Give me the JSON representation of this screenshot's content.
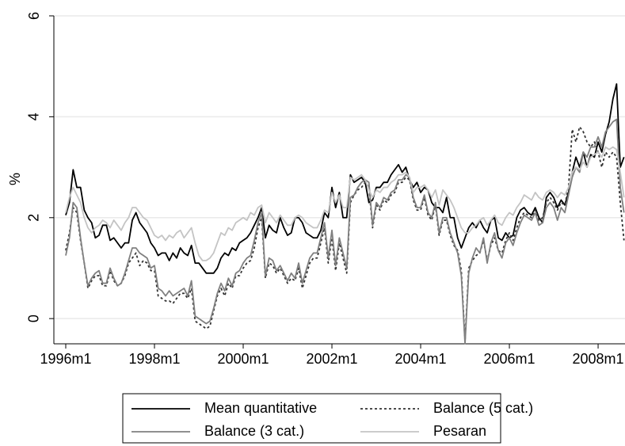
{
  "chart_data": {
    "type": "line",
    "y_label": "%",
    "x": [
      "1996m1",
      "1996m2",
      "1996m3",
      "1996m4",
      "1996m5",
      "1996m6",
      "1996m7",
      "1996m8",
      "1996m9",
      "1996m10",
      "1996m11",
      "1996m12",
      "1997m1",
      "1997m2",
      "1997m3",
      "1997m4",
      "1997m5",
      "1997m6",
      "1997m7",
      "1997m8",
      "1997m9",
      "1997m10",
      "1997m11",
      "1997m12",
      "1998m1",
      "1998m2",
      "1998m3",
      "1998m4",
      "1998m5",
      "1998m6",
      "1998m7",
      "1998m8",
      "1998m9",
      "1998m10",
      "1998m11",
      "1998m12",
      "1999m1",
      "1999m2",
      "1999m3",
      "1999m4",
      "1999m5",
      "1999m6",
      "1999m7",
      "1999m8",
      "1999m9",
      "1999m10",
      "1999m11",
      "1999m12",
      "2000m1",
      "2000m2",
      "2000m3",
      "2000m4",
      "2000m5",
      "2000m6",
      "2000m7",
      "2000m8",
      "2000m9",
      "2000m10",
      "2000m11",
      "2000m12",
      "2001m1",
      "2001m2",
      "2001m3",
      "2001m4",
      "2001m5",
      "2001m6",
      "2001m7",
      "2001m8",
      "2001m9",
      "2001m10",
      "2001m11",
      "2001m12",
      "2002m1",
      "2002m2",
      "2002m3",
      "2002m4",
      "2002m5",
      "2002m6",
      "2002m7",
      "2002m8",
      "2002m9",
      "2002m10",
      "2002m11",
      "2002m12",
      "2003m1",
      "2003m2",
      "2003m3",
      "2003m4",
      "2003m5",
      "2003m6",
      "2003m7",
      "2003m8",
      "2003m9",
      "2003m10",
      "2003m11",
      "2003m12",
      "2004m1",
      "2004m2",
      "2004m3",
      "2004m4",
      "2004m5",
      "2004m6",
      "2004m7",
      "2004m8",
      "2004m9",
      "2004m10",
      "2004m11",
      "2004m12",
      "2005m1",
      "2005m2",
      "2005m3",
      "2005m4",
      "2005m5",
      "2005m6",
      "2005m7",
      "2005m8",
      "2005m9",
      "2005m10",
      "2005m11",
      "2005m12",
      "2006m1",
      "2006m2",
      "2006m3",
      "2006m4",
      "2006m5",
      "2006m6",
      "2006m7",
      "2006m8",
      "2006m9",
      "2006m10",
      "2006m11",
      "2006m12",
      "2007m1",
      "2007m2",
      "2007m3",
      "2007m4",
      "2007m5",
      "2007m6",
      "2007m7",
      "2007m8",
      "2007m9",
      "2007m10",
      "2007m11",
      "2007m12",
      "2008m1",
      "2008m2",
      "2008m3",
      "2008m4",
      "2008m5",
      "2008m6",
      "2008m7",
      "2008m8"
    ],
    "series": [
      {
        "name": "Mean quantitative",
        "color": "#000000",
        "dash": "solid",
        "values": [
          2.05,
          2.3,
          2.95,
          2.6,
          2.6,
          2.15,
          2.0,
          1.9,
          1.6,
          1.65,
          1.85,
          1.85,
          1.55,
          1.6,
          1.5,
          1.4,
          1.5,
          1.5,
          1.95,
          2.1,
          1.9,
          1.8,
          1.7,
          1.5,
          1.4,
          1.25,
          1.3,
          1.3,
          1.15,
          1.3,
          1.2,
          1.4,
          1.3,
          1.25,
          1.45,
          1.1,
          1.1,
          1.0,
          0.9,
          0.9,
          0.9,
          1.0,
          1.2,
          1.3,
          1.25,
          1.4,
          1.35,
          1.5,
          1.55,
          1.6,
          1.7,
          1.85,
          2.0,
          2.2,
          1.6,
          1.85,
          1.75,
          1.7,
          2.0,
          1.8,
          1.65,
          1.7,
          2.0,
          2.0,
          1.9,
          1.7,
          1.65,
          1.6,
          1.6,
          1.75,
          2.1,
          2.0,
          2.6,
          2.2,
          2.5,
          2.0,
          2.0,
          2.85,
          2.7,
          2.75,
          2.8,
          2.7,
          2.3,
          2.35,
          2.6,
          2.6,
          2.7,
          2.7,
          2.85,
          2.95,
          3.05,
          2.9,
          3.0,
          2.75,
          2.6,
          2.7,
          2.5,
          2.6,
          2.55,
          2.3,
          2.2,
          2.2,
          2.1,
          2.4,
          2.0,
          2.0,
          1.6,
          1.4,
          1.6,
          1.8,
          1.9,
          1.8,
          1.95,
          1.8,
          1.7,
          1.95,
          2.0,
          1.6,
          1.55,
          1.7,
          1.6,
          1.65,
          2.0,
          2.15,
          2.2,
          2.1,
          2.05,
          2.2,
          2.0,
          1.9,
          2.4,
          2.5,
          2.4,
          2.2,
          2.35,
          2.25,
          2.5,
          2.9,
          3.2,
          3.0,
          3.3,
          3.0,
          3.25,
          3.2,
          3.5,
          3.3,
          3.65,
          3.9,
          4.35,
          4.65,
          3.0,
          3.2
        ]
      },
      {
        "name": "Balance (5 cat.)",
        "color": "#333333",
        "dash": "dotted",
        "values": [
          1.35,
          1.7,
          2.2,
          2.1,
          1.55,
          1.1,
          0.6,
          0.75,
          0.85,
          0.85,
          0.65,
          0.65,
          0.95,
          0.75,
          0.65,
          0.7,
          0.85,
          1.1,
          1.2,
          1.3,
          1.05,
          1.15,
          1.1,
          0.95,
          0.95,
          0.45,
          0.4,
          0.35,
          0.35,
          0.3,
          0.4,
          0.5,
          0.5,
          0.4,
          0.6,
          -0.05,
          -0.1,
          -0.15,
          -0.2,
          -0.15,
          0.15,
          0.45,
          0.6,
          0.45,
          0.7,
          0.6,
          0.85,
          0.85,
          1.0,
          1.1,
          1.15,
          1.4,
          1.8,
          2.0,
          0.8,
          1.1,
          1.05,
          0.9,
          1.0,
          0.85,
          0.7,
          0.8,
          0.75,
          1.0,
          0.6,
          0.85,
          1.1,
          1.2,
          1.2,
          1.5,
          1.8,
          1.1,
          1.6,
          0.95,
          1.5,
          1.2,
          0.9,
          2.3,
          2.45,
          2.55,
          2.6,
          2.7,
          2.6,
          1.8,
          2.25,
          2.15,
          2.35,
          2.3,
          2.45,
          2.5,
          2.7,
          2.7,
          2.8,
          2.75,
          2.35,
          2.15,
          2.15,
          2.4,
          2.05,
          1.95,
          2.25,
          1.65,
          1.95,
          1.95,
          1.65,
          1.45,
          1.35,
          0.95,
          -0.45,
          1.0,
          1.15,
          1.25,
          1.3,
          1.55,
          1.15,
          1.45,
          1.6,
          1.35,
          1.3,
          1.55,
          1.7,
          1.55,
          1.8,
          2.0,
          2.1,
          2.05,
          2.0,
          2.15,
          1.95,
          2.0,
          2.3,
          2.4,
          2.3,
          2.15,
          2.3,
          2.25,
          2.6,
          3.75,
          3.5,
          3.8,
          3.7,
          3.5,
          3.4,
          3.5,
          3.3,
          3.0,
          3.3,
          3.2,
          3.3,
          3.2,
          2.3,
          1.55
        ]
      },
      {
        "name": "Balance (3 cat.)",
        "color": "#808080",
        "dash": "solid",
        "values": [
          1.25,
          1.6,
          2.3,
          2.2,
          1.6,
          1.1,
          0.65,
          0.8,
          0.9,
          0.95,
          0.7,
          0.7,
          1.0,
          0.8,
          0.65,
          0.7,
          0.9,
          1.15,
          1.4,
          1.4,
          1.3,
          1.25,
          1.2,
          1.0,
          1.05,
          0.6,
          0.55,
          0.45,
          0.55,
          0.45,
          0.5,
          0.55,
          0.6,
          0.45,
          0.75,
          0.05,
          0.0,
          -0.05,
          -0.1,
          -0.05,
          0.2,
          0.5,
          0.7,
          0.55,
          0.8,
          0.65,
          0.9,
          0.95,
          1.1,
          1.2,
          1.25,
          1.55,
          1.9,
          2.1,
          0.85,
          1.2,
          1.15,
          0.95,
          1.05,
          0.9,
          0.75,
          0.9,
          0.8,
          1.1,
          0.7,
          0.95,
          1.2,
          1.3,
          1.3,
          1.6,
          1.9,
          1.2,
          1.75,
          1.05,
          1.6,
          1.3,
          1.0,
          2.4,
          2.45,
          2.6,
          2.7,
          2.75,
          2.7,
          1.85,
          2.3,
          2.2,
          2.4,
          2.35,
          2.5,
          2.55,
          2.75,
          2.75,
          2.85,
          2.8,
          2.4,
          2.2,
          2.2,
          2.45,
          2.1,
          2.0,
          2.3,
          1.7,
          2.0,
          2.0,
          1.7,
          1.5,
          1.3,
          0.85,
          -0.5,
          0.9,
          1.2,
          1.4,
          1.3,
          1.6,
          1.1,
          1.5,
          1.7,
          1.35,
          1.2,
          1.5,
          1.6,
          1.45,
          1.7,
          1.9,
          2.05,
          2.0,
          1.95,
          2.1,
          1.85,
          1.9,
          2.2,
          2.3,
          2.2,
          1.95,
          2.2,
          2.1,
          2.45,
          2.8,
          3.0,
          2.9,
          3.3,
          3.2,
          3.4,
          3.4,
          3.6,
          3.4,
          3.7,
          3.8,
          3.9,
          3.95,
          2.6,
          2.1
        ]
      },
      {
        "name": "Pesaran",
        "color": "#c4c4c4",
        "dash": "solid",
        "values": [
          2.1,
          2.4,
          2.6,
          2.45,
          2.3,
          2.0,
          1.8,
          1.7,
          1.8,
          1.85,
          1.95,
          1.9,
          1.8,
          1.95,
          1.85,
          1.75,
          1.9,
          2.0,
          2.2,
          2.2,
          2.1,
          2.0,
          1.95,
          1.8,
          1.65,
          1.6,
          1.65,
          1.55,
          1.65,
          1.6,
          1.7,
          1.75,
          1.6,
          1.7,
          1.8,
          1.5,
          1.25,
          1.15,
          1.15,
          1.2,
          1.3,
          1.5,
          1.7,
          1.65,
          1.8,
          1.75,
          1.9,
          1.95,
          2.0,
          1.95,
          2.1,
          2.05,
          2.2,
          2.25,
          1.9,
          2.1,
          2.0,
          1.9,
          2.05,
          1.95,
          1.85,
          1.85,
          2.0,
          2.05,
          2.0,
          1.9,
          1.85,
          1.8,
          1.8,
          1.95,
          2.15,
          2.1,
          2.5,
          2.3,
          2.45,
          2.2,
          2.2,
          2.8,
          2.75,
          2.8,
          2.85,
          2.75,
          2.55,
          2.4,
          2.55,
          2.5,
          2.6,
          2.6,
          2.7,
          2.75,
          2.85,
          2.85,
          2.9,
          2.8,
          2.5,
          2.6,
          2.6,
          2.65,
          2.55,
          2.4,
          2.55,
          2.25,
          2.55,
          2.45,
          2.35,
          2.2,
          2.0,
          1.8,
          1.7,
          1.7,
          1.8,
          1.85,
          1.95,
          2.0,
          1.85,
          1.95,
          2.05,
          1.9,
          1.85,
          2.0,
          2.1,
          2.05,
          2.2,
          2.3,
          2.45,
          2.4,
          2.35,
          2.5,
          2.4,
          2.35,
          2.5,
          2.55,
          2.5,
          2.4,
          2.5,
          2.45,
          2.6,
          2.9,
          3.0,
          2.95,
          3.1,
          3.0,
          3.2,
          3.25,
          3.3,
          3.2,
          3.4,
          3.35,
          3.4,
          3.35,
          2.9,
          2.4
        ]
      }
    ],
    "xticks": [
      "1996m1",
      "1998m1",
      "2000m1",
      "2002m1",
      "2004m1",
      "2006m1",
      "2008m1"
    ],
    "ylim": [
      -0.5,
      6
    ],
    "yticks": [
      0,
      2,
      4,
      6
    ],
    "grid": true
  }
}
